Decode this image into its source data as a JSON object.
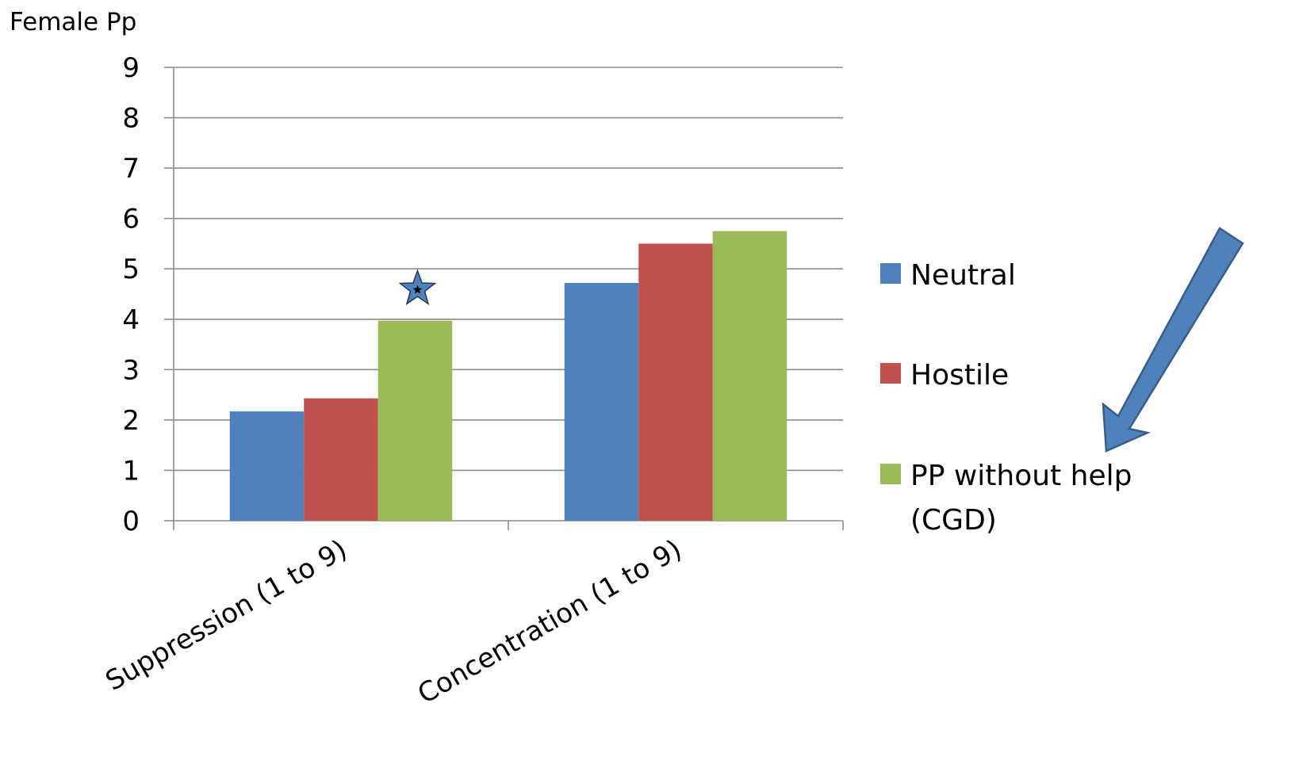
{
  "chart_data": {
    "type": "bar",
    "title": "Female Pp",
    "categories": [
      "Suppression (1 to 9)",
      "Concentration (1 to 9)"
    ],
    "series": [
      {
        "name": "Neutral",
        "color": "#4f81bd",
        "values": [
          2.17,
          4.72
        ]
      },
      {
        "name": "Hostile",
        "color": "#c0504d",
        "values": [
          2.43,
          5.5
        ]
      },
      {
        "name": "PP without help (CGD)",
        "legend_lines": [
          "PP without help",
          "(CGD)"
        ],
        "color": "#9bbb59",
        "values": [
          3.97,
          5.75
        ]
      }
    ],
    "ylim": [
      0,
      9
    ],
    "yticks": [
      0,
      1,
      2,
      3,
      4,
      5,
      6,
      7,
      8,
      9
    ],
    "grid": true,
    "legend_position": "right",
    "annotations": [
      {
        "type": "significance-star",
        "category": "Suppression (1 to 9)",
        "series": "PP without help (CGD)",
        "value": 4.6,
        "color": "#4f81bd"
      }
    ],
    "decorations": [
      {
        "type": "arrow",
        "direction": "down-left",
        "points_to": "PP without help (CGD)",
        "color": "#4f81bd"
      }
    ]
  }
}
